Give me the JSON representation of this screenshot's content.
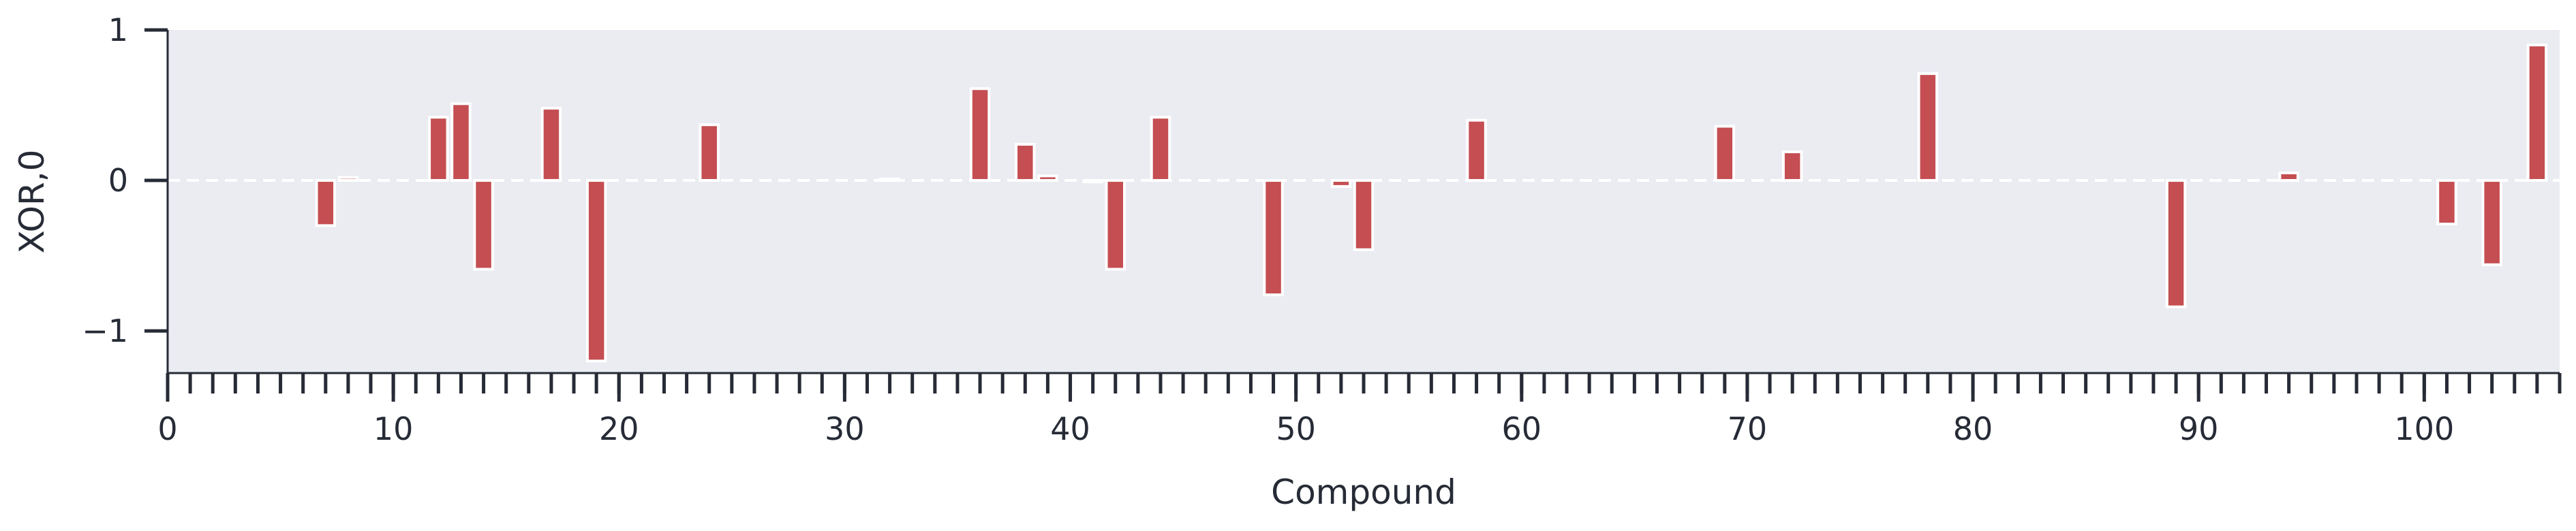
{
  "chart_data": {
    "type": "bar",
    "xlabel": "Compound",
    "ylabel": "XOR,0",
    "xlim": [
      0,
      106
    ],
    "ylim": [
      -1.28,
      1.0
    ],
    "x_ticks_major": [
      0,
      10,
      20,
      30,
      40,
      50,
      60,
      70,
      80,
      90,
      100
    ],
    "x_tick_labels": [
      "0",
      "10",
      "20",
      "30",
      "40",
      "50",
      "60",
      "70",
      "80",
      "90",
      "100"
    ],
    "y_ticks": [
      -1,
      0,
      1
    ],
    "y_tick_labels": [
      "−1",
      "0",
      "1"
    ],
    "reference_line": 0,
    "grid": false,
    "colors": {
      "bar": "#c44e52",
      "plot_background": "#eaecf2",
      "axis": "#262b36",
      "reference_line": "#ffffff"
    },
    "series": [
      {
        "x": [
          7,
          8,
          12,
          13,
          14,
          17,
          19,
          24,
          32,
          36,
          38,
          39,
          41,
          42,
          44,
          49,
          52,
          53,
          58,
          69,
          72,
          78,
          89,
          94,
          101,
          103,
          105
        ],
        "values": [
          -0.3,
          0.02,
          0.42,
          0.51,
          -0.59,
          0.48,
          -1.2,
          0.37,
          0.01,
          0.61,
          0.24,
          0.03,
          -0.01,
          -0.59,
          0.42,
          -0.76,
          -0.04,
          -0.46,
          0.4,
          0.36,
          0.19,
          0.71,
          -0.84,
          0.05,
          -0.29,
          -0.56,
          0.9
        ]
      }
    ]
  }
}
